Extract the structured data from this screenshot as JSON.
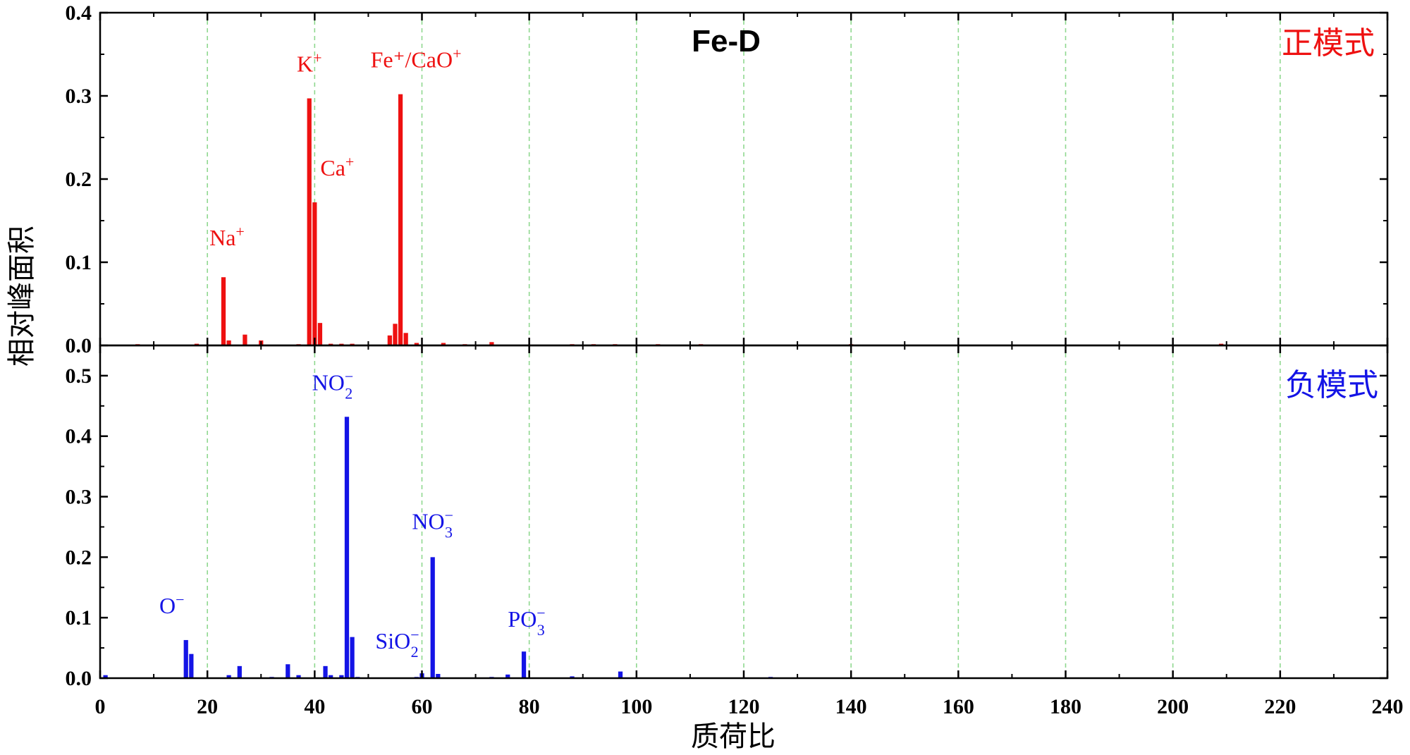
{
  "chart_data": {
    "type": "bar",
    "title": "Fe-D",
    "xlabel": "质荷比",
    "ylabel": "相对峰面积",
    "xlim": [
      0,
      240
    ],
    "x_ticks": [
      0,
      20,
      40,
      60,
      80,
      100,
      120,
      140,
      160,
      180,
      200,
      220,
      240
    ],
    "grid": "vertical dashed, every 20",
    "panels": [
      {
        "name": "正模式",
        "mode_label": "正模式",
        "color": "#ee1111",
        "ylim": [
          0,
          0.4
        ],
        "y_ticks": [
          "0.0",
          "0.1",
          "0.2",
          "0.3",
          "0.4"
        ],
        "x": [
          7,
          18,
          23,
          24,
          27,
          30,
          37,
          39,
          40,
          41,
          43,
          45,
          47,
          54,
          55,
          56,
          57,
          59,
          64,
          68,
          73,
          88,
          92,
          96,
          104,
          112,
          140,
          209
        ],
        "values": [
          0.0015,
          0.002,
          0.082,
          0.006,
          0.013,
          0.006,
          0.0015,
          0.297,
          0.172,
          0.027,
          0.002,
          0.002,
          0.002,
          0.012,
          0.026,
          0.302,
          0.015,
          0.003,
          0.003,
          0.0015,
          0.004,
          0.0015,
          0.0015,
          0.0015,
          0.0015,
          0.0015,
          0.0015,
          0.002
        ],
        "peak_labels": [
          {
            "x": 23,
            "y": 0.082,
            "base": "Na",
            "sup": "+",
            "sub": ""
          },
          {
            "x": 39,
            "y": 0.297,
            "base": "K",
            "sup": "+",
            "sub": ""
          },
          {
            "x": 40,
            "y": 0.172,
            "base": "Ca",
            "sup": "+",
            "sub": ""
          },
          {
            "x": 56,
            "y": 0.302,
            "base": "Fe⁺/CaO",
            "sup": "+",
            "sub": ""
          }
        ]
      },
      {
        "name": "负模式",
        "mode_label": "负模式",
        "color": "#1414e6",
        "ylim": [
          0,
          0.55
        ],
        "y_ticks": [
          "0.0",
          "0.1",
          "0.2",
          "0.3",
          "0.4",
          "0.5"
        ],
        "x": [
          1,
          16,
          17,
          24,
          26,
          32,
          35,
          37,
          42,
          43,
          45,
          46,
          47,
          48,
          59,
          60,
          62,
          63,
          73,
          76,
          79,
          88,
          97,
          125
        ],
        "values": [
          0.005,
          0.063,
          0.04,
          0.005,
          0.02,
          0.002,
          0.023,
          0.005,
          0.02,
          0.005,
          0.005,
          0.432,
          0.068,
          0.002,
          0.002,
          0.008,
          0.2,
          0.007,
          0.002,
          0.006,
          0.044,
          0.003,
          0.011,
          0.002
        ],
        "peak_labels": [
          {
            "x": 16,
            "y": 0.063,
            "base": "O",
            "sup": "−",
            "sub": ""
          },
          {
            "x": 46,
            "y": 0.432,
            "base": "NO",
            "sup": "−",
            "sub": "2"
          },
          {
            "x": 62,
            "y": 0.2,
            "base": "NO",
            "sup": "−",
            "sub": "3"
          },
          {
            "x": 60,
            "y": 0.008,
            "base": "SiO",
            "sup": "−",
            "sub": "2"
          },
          {
            "x": 79,
            "y": 0.044,
            "base": "PO",
            "sup": "−",
            "sub": "3"
          }
        ]
      }
    ]
  }
}
